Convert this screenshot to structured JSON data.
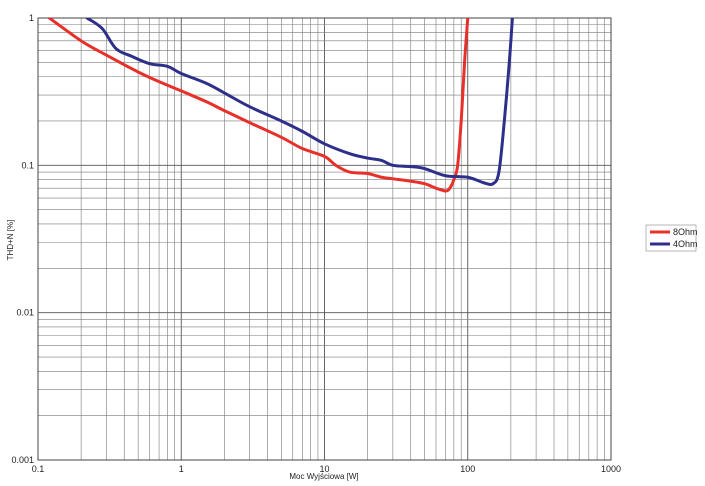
{
  "chart_data": {
    "type": "line",
    "title": "",
    "xlabel": "Moc Wyjściowa [W]",
    "ylabel": "THD+N [%]",
    "x_scale": "log",
    "y_scale": "log",
    "xlim": [
      0.1,
      1000
    ],
    "ylim": [
      0.001,
      1
    ],
    "grid": true,
    "legend_position": "right",
    "x_tick_labels": [
      "0.1",
      "1",
      "10",
      "100",
      "1000"
    ],
    "y_tick_labels": [
      "1",
      "0.1",
      "0.01",
      "0.001"
    ],
    "series": [
      {
        "name": "8Ohm",
        "color": "#e8302a",
        "x": [
          0.12,
          0.2,
          0.3,
          0.5,
          0.7,
          1.0,
          1.5,
          2.0,
          3.0,
          5.0,
          7.0,
          10,
          12,
          15,
          20,
          25,
          30,
          40,
          50,
          60,
          70,
          75,
          80,
          85,
          90,
          95,
          100
        ],
        "y": [
          1.0,
          0.7,
          0.56,
          0.43,
          0.37,
          0.32,
          0.27,
          0.235,
          0.195,
          0.155,
          0.13,
          0.115,
          0.1,
          0.09,
          0.088,
          0.083,
          0.081,
          0.078,
          0.075,
          0.07,
          0.067,
          0.07,
          0.08,
          0.1,
          0.2,
          0.5,
          1.0
        ]
      },
      {
        "name": "4Ohm",
        "color": "#2e2f8a",
        "x": [
          0.22,
          0.28,
          0.35,
          0.45,
          0.6,
          0.8,
          1.0,
          1.5,
          2.0,
          3.0,
          5.0,
          7.0,
          10,
          15,
          20,
          25,
          30,
          40,
          50,
          70,
          100,
          130,
          150,
          165,
          180,
          195,
          205
        ],
        "y": [
          1.0,
          0.85,
          0.62,
          0.55,
          0.49,
          0.47,
          0.42,
          0.36,
          0.31,
          0.25,
          0.2,
          0.17,
          0.14,
          0.12,
          0.112,
          0.108,
          0.1,
          0.098,
          0.095,
          0.085,
          0.083,
          0.076,
          0.075,
          0.09,
          0.2,
          0.5,
          1.0
        ]
      }
    ]
  }
}
